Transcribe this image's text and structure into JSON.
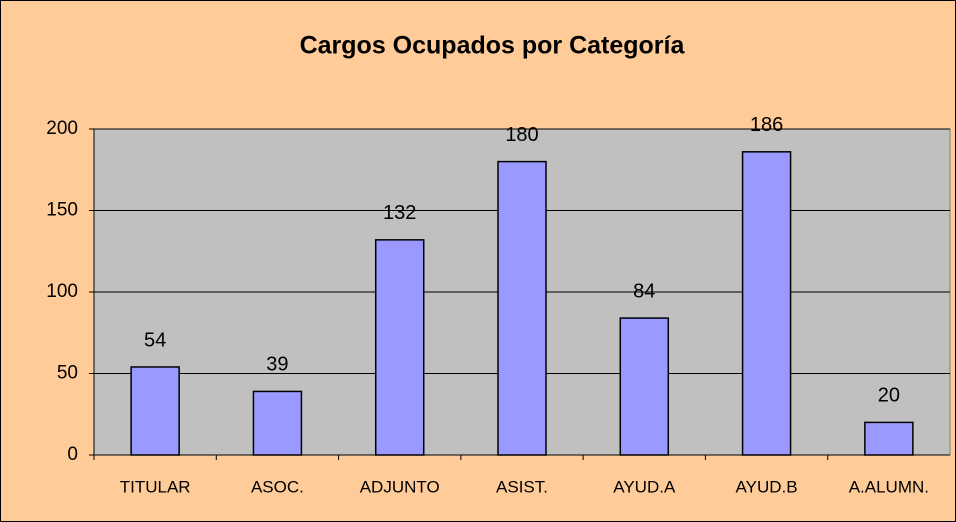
{
  "chart_data": {
    "type": "bar",
    "title": "Cargos Ocupados por Categoría",
    "categories": [
      "TITULAR",
      "ASOC.",
      "ADJUNTO",
      "ASIST.",
      "AYUD.A",
      "AYUD.B",
      "A.ALUMN."
    ],
    "values": [
      54,
      39,
      132,
      180,
      84,
      186,
      20
    ],
    "color": "#9999ff",
    "ylim": [
      0,
      200
    ],
    "yticks": [
      0,
      50,
      100,
      150,
      200
    ],
    "grid": true
  }
}
